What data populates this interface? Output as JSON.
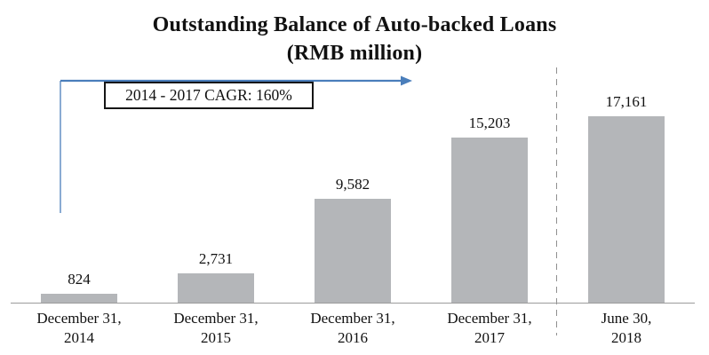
{
  "title": {
    "line1": "Outstanding Balance of Auto-backed Loans",
    "line2": "(RMB million)"
  },
  "annotation": {
    "cagr_box_label": "2014 - 2017 CAGR: 160%"
  },
  "chart_data": {
    "type": "bar",
    "title": "Outstanding Balance of Auto-backed Loans (RMB million)",
    "categories": [
      "December 31, 2014",
      "December 31, 2015",
      "December 31, 2016",
      "December 31, 2017",
      "June 30, 2018"
    ],
    "category_label_lines": [
      [
        "December 31,",
        "2014"
      ],
      [
        "December 31,",
        "2015"
      ],
      [
        "December 31,",
        "2016"
      ],
      [
        "December 31,",
        "2017"
      ],
      [
        "June 30,",
        "2018"
      ]
    ],
    "values": [
      824,
      2731,
      9582,
      15203,
      17161
    ],
    "value_labels": [
      "824",
      "2,731",
      "9,582",
      "15,203",
      "17,161"
    ],
    "xlabel": "",
    "ylabel": "",
    "ylim": [
      0,
      17161
    ],
    "grid": false,
    "legend": false,
    "bar_color": "#b4b6b9",
    "separator": {
      "style": "dashed",
      "between": [
        "December 31, 2017",
        "June 30, 2018"
      ]
    }
  },
  "colors": {
    "bar_fill": "#b4b6b9",
    "arrow_blue": "#4a7ebb",
    "axis_line": "#9b9b9b",
    "separator_dash": "#8f8f8f",
    "text": "#111111",
    "background": "#ffffff",
    "annotation_border": "#161616"
  }
}
